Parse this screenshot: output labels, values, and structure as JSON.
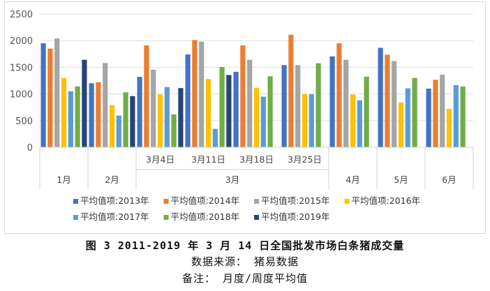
{
  "chart_data": {
    "type": "bar",
    "ylim": [
      0,
      2500
    ],
    "yticks": [
      0,
      500,
      1000,
      1500,
      2000,
      2500
    ],
    "grid": true,
    "legend_position": "bottom",
    "groups": [
      {
        "label": "1月",
        "categories": [
          ""
        ]
      },
      {
        "label": "2月",
        "categories": [
          ""
        ]
      },
      {
        "label": "3月",
        "categories": [
          "3月4日",
          "3月11日",
          "3月18日",
          "3月25日"
        ]
      },
      {
        "label": "4月",
        "categories": [
          ""
        ]
      },
      {
        "label": "5月",
        "categories": [
          ""
        ]
      },
      {
        "label": "6月",
        "categories": [
          ""
        ]
      }
    ],
    "series": [
      {
        "name": "平均值项:2013年",
        "color": "#4472C4",
        "values": [
          1950,
          1200,
          1320,
          1740,
          1415,
          1540,
          1705,
          1865,
          1100
        ]
      },
      {
        "name": "平均值项:2014年",
        "color": "#ED7D31",
        "values": [
          1850,
          1220,
          1910,
          2010,
          1910,
          2110,
          1950,
          1735,
          1265
        ]
      },
      {
        "name": "平均值项:2015年",
        "color": "#A5A5A5",
        "values": [
          2040,
          1580,
          1455,
          1980,
          1640,
          1540,
          1640,
          1615,
          1360
        ]
      },
      {
        "name": "平均值项:2016年",
        "color": "#FFC000",
        "values": [
          1300,
          790,
          990,
          1280,
          1115,
          995,
          990,
          840,
          720
        ]
      },
      {
        "name": "平均值项:2017年",
        "color": "#5B9BD5",
        "values": [
          1050,
          595,
          1130,
          345,
          950,
          995,
          880,
          1105,
          1165
        ]
      },
      {
        "name": "平均值项:2018年",
        "color": "#70AD47",
        "values": [
          1140,
          1030,
          615,
          1505,
          1330,
          1575,
          1325,
          1300,
          1140
        ]
      },
      {
        "name": "平均值项:2019年",
        "color": "#264478",
        "values": [
          1640,
          960,
          1110,
          1355,
          null,
          null,
          null,
          null,
          null
        ]
      }
    ]
  },
  "caption": {
    "figure": "图 3 2011-2019 年 3 月 14 日全国批发市场白条猪成交量",
    "source": "数据来源： 猪易数据",
    "note": "备注： 月度/周度平均值"
  }
}
